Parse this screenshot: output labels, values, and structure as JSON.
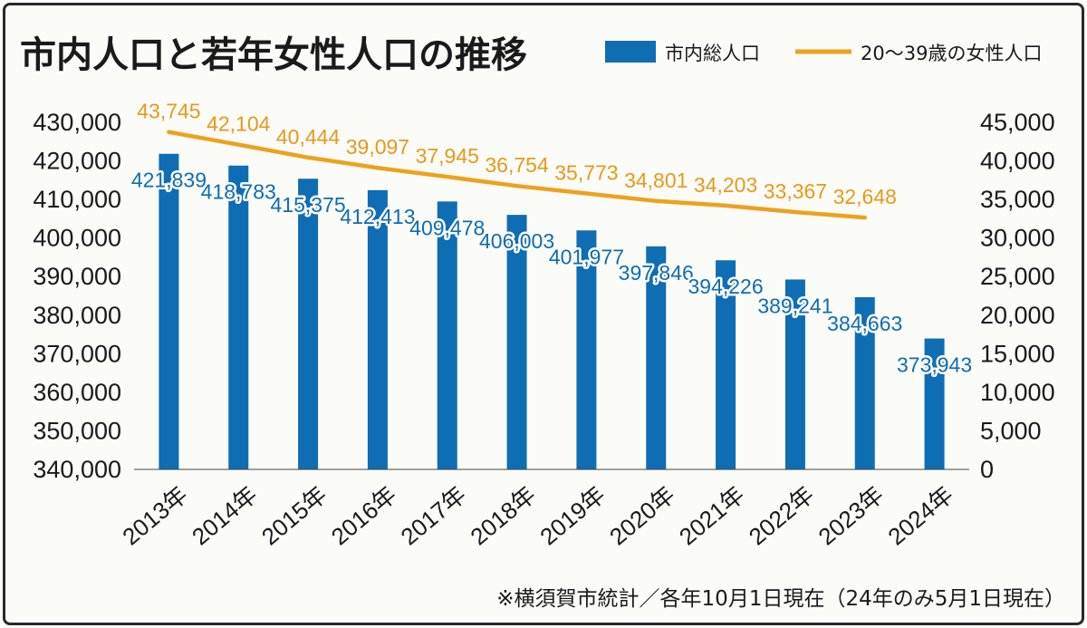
{
  "chart_data": {
    "type": "bar",
    "title": "市内人口と若年女性人口の推移",
    "categories": [
      "2013年",
      "2014年",
      "2015年",
      "2016年",
      "2017年",
      "2018年",
      "2019年",
      "2020年",
      "2021年",
      "2022年",
      "2023年",
      "2024年"
    ],
    "series": [
      {
        "name": "市内総人口",
        "type": "bar",
        "axis": "left",
        "color": "#0f6db3",
        "values": [
          421839,
          418783,
          415375,
          412413,
          409478,
          406003,
          401977,
          397846,
          394226,
          389241,
          384663,
          373943
        ],
        "labels": [
          "421,839",
          "418,783",
          "415,375",
          "412,413",
          "409,478",
          "406,003",
          "401,977",
          "397,846",
          "394,226",
          "389,241",
          "384,663",
          "373,943"
        ]
      },
      {
        "name": "20～39歳の女性人口",
        "type": "line",
        "axis": "right",
        "color": "#eea11c",
        "values": [
          43745,
          42104,
          40444,
          39097,
          37945,
          36754,
          35773,
          34801,
          34203,
          33367,
          32648,
          null
        ],
        "labels": [
          "43,745",
          "42,104",
          "40,444",
          "39,097",
          "37,945",
          "36,754",
          "35,773",
          "34,801",
          "34,203",
          "33,367",
          "32,648",
          ""
        ]
      }
    ],
    "y_left": {
      "min": 340000,
      "max": 430000,
      "ticks": [
        340000,
        350000,
        360000,
        370000,
        380000,
        390000,
        400000,
        410000,
        420000,
        430000
      ],
      "tick_labels": [
        "340,000",
        "350,000",
        "360,000",
        "370,000",
        "380,000",
        "390,000",
        "400,000",
        "410,000",
        "420,000",
        "430,000"
      ]
    },
    "y_right": {
      "min": 0,
      "max": 45000,
      "ticks": [
        0,
        5000,
        10000,
        15000,
        20000,
        25000,
        30000,
        35000,
        40000,
        45000
      ],
      "tick_labels": [
        "0",
        "5,000",
        "10,000",
        "15,000",
        "20,000",
        "25,000",
        "30,000",
        "35,000",
        "40,000",
        "45,000"
      ]
    },
    "legend_position": "top-right",
    "note": "※横須賀市統計／各年10月1日現在（24年のみ5月1日現在）"
  }
}
